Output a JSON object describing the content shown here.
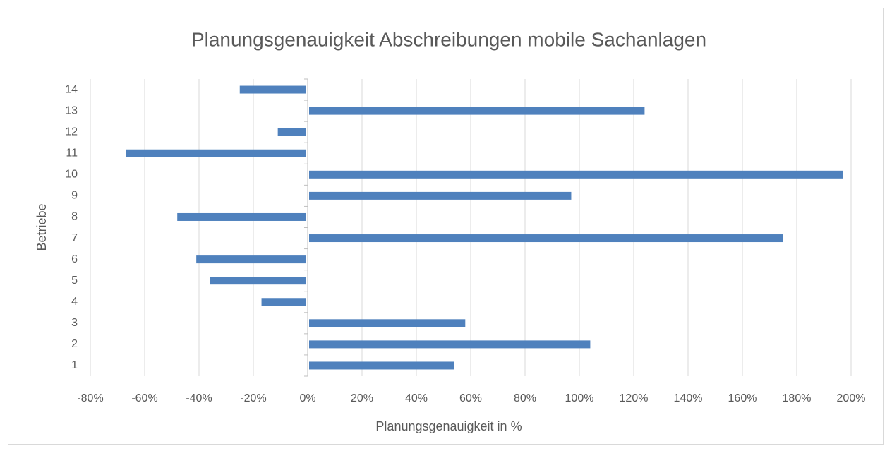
{
  "chart_data": {
    "type": "barh",
    "title": "Planungsgenauigkeit Abschreibungen mobile Sachanlagen",
    "xlabel": "Planungsgenauigkeit in %",
    "ylabel": "Betriebe",
    "categories": [
      "1",
      "2",
      "3",
      "4",
      "5",
      "6",
      "7",
      "8",
      "9",
      "10",
      "11",
      "12",
      "13",
      "14"
    ],
    "values": [
      54,
      104,
      58,
      -17,
      -36,
      -41,
      175,
      -48,
      97,
      197,
      -67,
      -11,
      124,
      -25
    ],
    "color": "#4f81bd",
    "xlim": [
      -80,
      200
    ],
    "xticks": [
      {
        "value": -80,
        "label": "-80%"
      },
      {
        "value": -60,
        "label": "-60%"
      },
      {
        "value": -40,
        "label": "-40%"
      },
      {
        "value": -20,
        "label": "-20%"
      },
      {
        "value": 0,
        "label": "0%"
      },
      {
        "value": 20,
        "label": "20%"
      },
      {
        "value": 40,
        "label": "40%"
      },
      {
        "value": 60,
        "label": "60%"
      },
      {
        "value": 80,
        "label": "80%"
      },
      {
        "value": 100,
        "label": "100%"
      },
      {
        "value": 120,
        "label": "120%"
      },
      {
        "value": 140,
        "label": "140%"
      },
      {
        "value": 160,
        "label": "160%"
      },
      {
        "value": 180,
        "label": "180%"
      },
      {
        "value": 200,
        "label": "200%"
      }
    ],
    "grid": true
  }
}
